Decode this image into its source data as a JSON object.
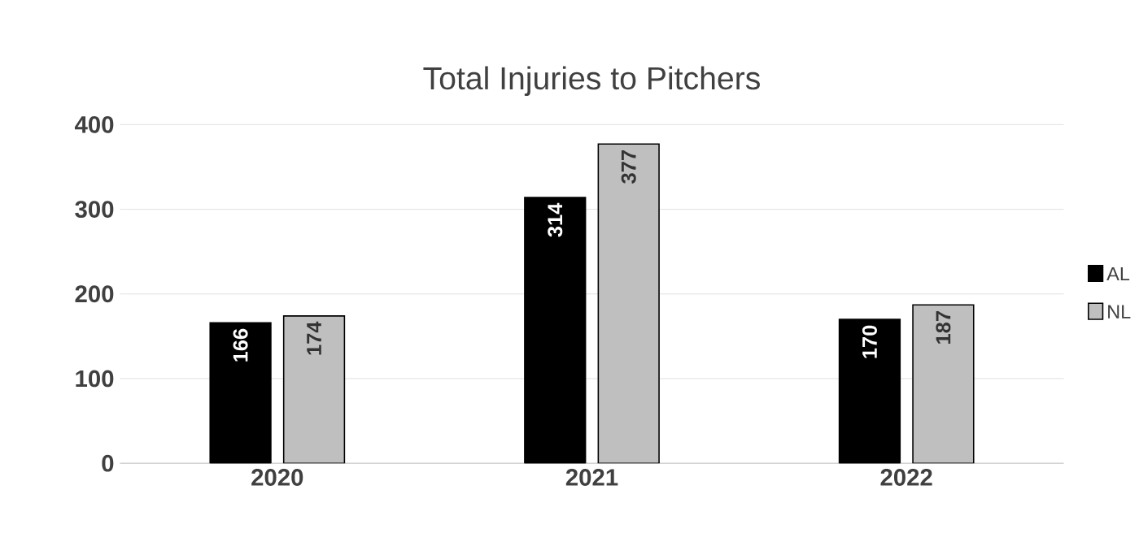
{
  "chart_data": {
    "type": "bar",
    "title": "Total Injuries to Pitchers",
    "categories": [
      "2020",
      "2021",
      "2022"
    ],
    "series": [
      {
        "name": "AL",
        "color": "#000000",
        "values": [
          166,
          314,
          170
        ]
      },
      {
        "name": "NL",
        "color": "#bfbfbf",
        "values": [
          174,
          377,
          187
        ]
      }
    ],
    "ylim": [
      0,
      400
    ],
    "yticks": [
      0,
      100,
      200,
      300,
      400
    ],
    "grid": "y",
    "legend": "right",
    "data_labels": true
  }
}
